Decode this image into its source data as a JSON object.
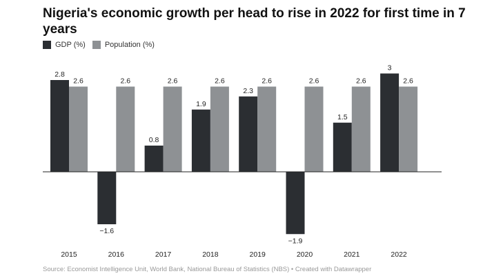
{
  "chart_data": {
    "type": "bar",
    "title": "Nigeria's economic growth per head to rise in 2022 for first time in 7 years",
    "categories": [
      "2015",
      "2016",
      "2017",
      "2018",
      "2019",
      "2020",
      "2021",
      "2022"
    ],
    "series": [
      {
        "name": "GDP (%)",
        "color": "#2b2e32",
        "values": [
          2.8,
          -1.6,
          0.8,
          1.9,
          2.3,
          -1.9,
          1.5,
          3
        ]
      },
      {
        "name": "Population (%)",
        "color": "#8e9194",
        "values": [
          2.6,
          2.6,
          2.6,
          2.6,
          2.6,
          2.6,
          2.6,
          2.6
        ]
      }
    ],
    "value_labels": {
      "GDP (%)": [
        "2.8",
        "−1.6",
        "0.8",
        "1.9",
        "2.3",
        "−1.9",
        "1.5",
        "3"
      ],
      "Population (%)": [
        "2.6",
        "2.6",
        "2.6",
        "2.6",
        "2.6",
        "2.6",
        "2.6",
        "2.6"
      ]
    },
    "legend_placement": "top-left",
    "grid": false,
    "footer": "Source: Economist Intelligence Unit, World Bank, National Bureau of Statistics (NBS) • Created with Datawrapper"
  }
}
